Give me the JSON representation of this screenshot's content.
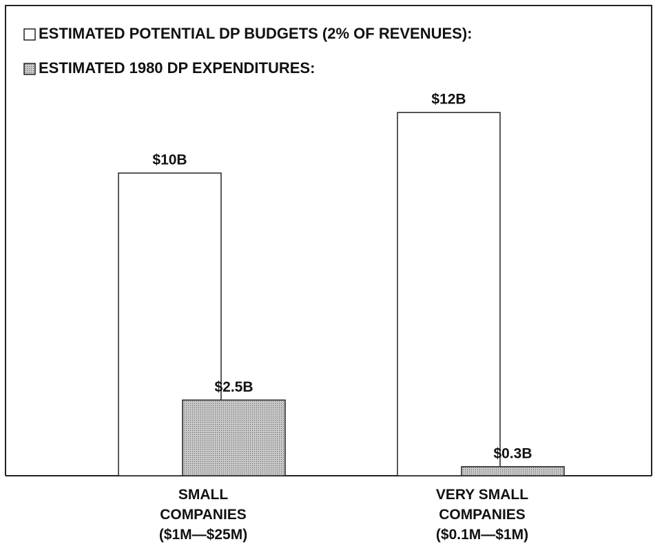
{
  "chart_data": {
    "type": "bar",
    "categories": [
      "SMALL\nCOMPANIES\n($1M—$25M)",
      "VERY SMALL\nCOMPANIES\n($0.1M—$1M)"
    ],
    "series": [
      {
        "name": "ESTIMATED POTENTIAL DP BUDGETS (2% OF REVENUES):",
        "color": "#ffffff",
        "values": [
          10,
          12
        ],
        "value_labels": [
          "$10B",
          "$12B"
        ]
      },
      {
        "name": "ESTIMATED 1980 DP EXPENDITURES:",
        "color": "#b4b4b4",
        "values": [
          2.5,
          0.3
        ],
        "value_labels": [
          "$2.5B",
          "$0.3B"
        ]
      }
    ]
  }
}
